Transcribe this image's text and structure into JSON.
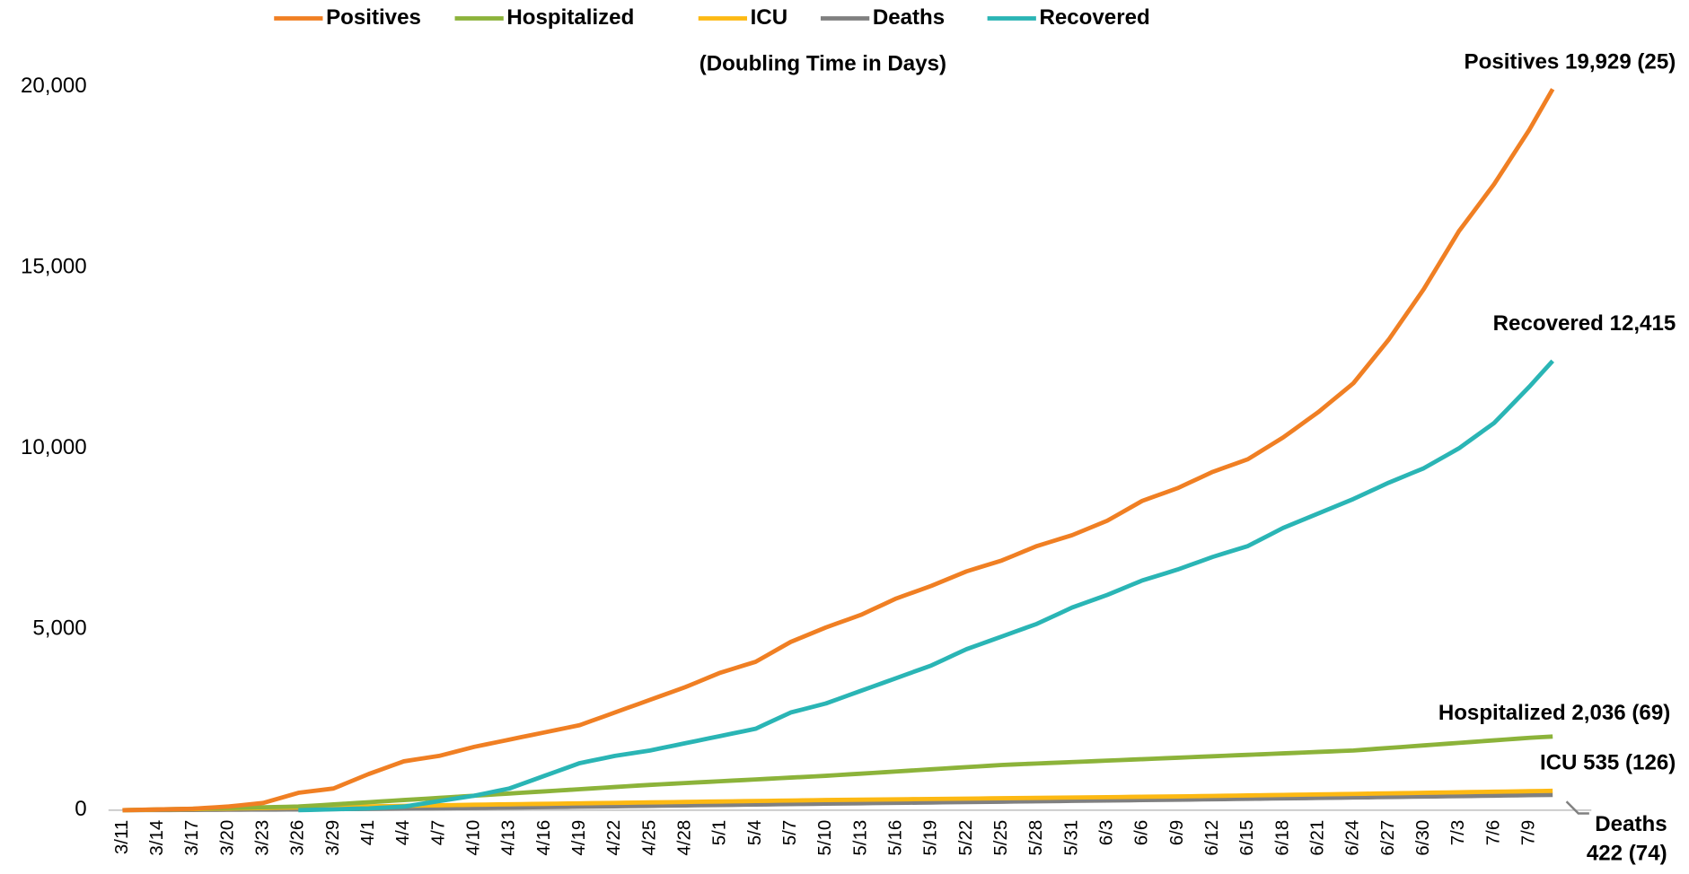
{
  "chart_data": {
    "type": "line",
    "subtitle": "(Doubling Time in Days)",
    "categories": [
      "3/11",
      null,
      null,
      "3/14",
      null,
      null,
      "3/17",
      null,
      null,
      "3/20",
      null,
      null,
      "3/23",
      null,
      null,
      "3/26",
      null,
      null,
      "3/29",
      null,
      null,
      "4/1",
      null,
      null,
      "4/4",
      null,
      null,
      "4/7",
      null,
      null,
      "4/10",
      null,
      null,
      "4/13",
      null,
      null,
      "4/16",
      null,
      null,
      "4/19",
      null,
      null,
      "4/22",
      null,
      null,
      "4/25",
      null,
      null,
      "4/28",
      null,
      null,
      "5/1",
      null,
      null,
      "5/4",
      null,
      null,
      "5/7",
      null,
      null,
      "5/10",
      null,
      null,
      "5/13",
      null,
      null,
      "5/16",
      null,
      null,
      "5/19",
      null,
      null,
      "5/22",
      null,
      null,
      "5/25",
      null,
      null,
      "5/28",
      null,
      null,
      "5/31",
      null,
      null,
      "6/3",
      null,
      null,
      "6/6",
      null,
      null,
      "6/9",
      null,
      null,
      "6/12",
      null,
      null,
      "6/15",
      null,
      null,
      "6/18",
      null,
      null,
      "6/21",
      null,
      null,
      "6/24",
      null,
      null,
      "6/27",
      null,
      null,
      "6/30",
      null,
      null,
      "7/3",
      null,
      null,
      "7/6",
      null,
      null,
      "7/9",
      null,
      null
    ],
    "series": [
      {
        "name": "Positives",
        "color": "#f07f23",
        "values": [
          0,
          7,
          14,
          20,
          27,
          33,
          40,
          60,
          80,
          100,
          133,
          167,
          200,
          293,
          387,
          480,
          520,
          560,
          600,
          733,
          867,
          1000,
          1117,
          1233,
          1350,
          1400,
          1450,
          1500,
          1583,
          1667,
          1750,
          1817,
          1883,
          1950,
          2017,
          2083,
          2150,
          2217,
          2283,
          2350,
          2467,
          2583,
          2700,
          2817,
          2933,
          3050,
          3167,
          3283,
          3400,
          3533,
          3667,
          3800,
          3900,
          4000,
          4100,
          4283,
          4467,
          4650,
          4783,
          4917,
          5050,
          5167,
          5283,
          5400,
          5550,
          5700,
          5850,
          5967,
          6083,
          6200,
          6333,
          6467,
          6600,
          6700,
          6800,
          6900,
          7033,
          7167,
          7300,
          7400,
          7500,
          7600,
          7733,
          7867,
          8000,
          8183,
          8367,
          8550,
          8667,
          8783,
          8900,
          9050,
          9200,
          9350,
          9467,
          9583,
          9700,
          9900,
          10100,
          10300,
          10533,
          10767,
          11000,
          11267,
          11533,
          11800,
          12200,
          12600,
          13000,
          13467,
          13933,
          14400,
          14933,
          15467,
          16000,
          16433,
          16867,
          17300,
          17800,
          18300,
          18800,
          19365,
          19929
        ]
      },
      {
        "name": "Hospitalized",
        "color": "#8cb33a",
        "values": [
          0,
          7,
          13,
          20,
          27,
          33,
          40,
          47,
          53,
          60,
          67,
          73,
          80,
          87,
          93,
          100,
          120,
          140,
          160,
          180,
          200,
          220,
          240,
          260,
          280,
          300,
          320,
          340,
          360,
          380,
          400,
          420,
          440,
          460,
          480,
          500,
          520,
          540,
          560,
          580,
          600,
          620,
          640,
          660,
          680,
          700,
          717,
          733,
          750,
          767,
          783,
          800,
          817,
          833,
          850,
          867,
          883,
          900,
          917,
          933,
          950,
          970,
          990,
          1010,
          1030,
          1050,
          1070,
          1090,
          1110,
          1130,
          1150,
          1170,
          1190,
          1210,
          1230,
          1250,
          1263,
          1277,
          1290,
          1303,
          1317,
          1330,
          1343,
          1357,
          1370,
          1383,
          1397,
          1410,
          1423,
          1437,
          1450,
          1463,
          1477,
          1490,
          1503,
          1517,
          1530,
          1543,
          1557,
          1570,
          1583,
          1597,
          1610,
          1623,
          1637,
          1650,
          1673,
          1697,
          1720,
          1743,
          1767,
          1790,
          1813,
          1837,
          1860,
          1883,
          1907,
          1930,
          1953,
          1977,
          2000,
          2018,
          2036
        ]
      },
      {
        "name": "ICU",
        "color": "#fdb913",
        "values": [
          0,
          5,
          10,
          15,
          20,
          25,
          30,
          35,
          40,
          45,
          50,
          55,
          60,
          65,
          70,
          75,
          80,
          85,
          90,
          95,
          100,
          105,
          110,
          115,
          120,
          125,
          130,
          135,
          140,
          145,
          150,
          154,
          159,
          163,
          167,
          172,
          176,
          180,
          185,
          189,
          193,
          198,
          202,
          206,
          211,
          215,
          219,
          224,
          228,
          232,
          237,
          241,
          245,
          250,
          254,
          258,
          263,
          267,
          271,
          276,
          280,
          283,
          287,
          290,
          293,
          297,
          300,
          303,
          307,
          310,
          313,
          317,
          320,
          323,
          327,
          330,
          333,
          337,
          340,
          343,
          347,
          350,
          353,
          357,
          360,
          363,
          367,
          370,
          373,
          377,
          380,
          385,
          389,
          394,
          399,
          403,
          408,
          413,
          417,
          422,
          427,
          431,
          436,
          441,
          445,
          450,
          455,
          460,
          465,
          470,
          475,
          480,
          485,
          490,
          495,
          500,
          505,
          510,
          515,
          520,
          525,
          530,
          535
        ]
      },
      {
        "name": "Deaths",
        "color": "#808080",
        "values": [
          0,
          1,
          3,
          4,
          5,
          7,
          8,
          9,
          11,
          12,
          13,
          15,
          16,
          17,
          19,
          20,
          23,
          25,
          28,
          31,
          33,
          36,
          39,
          41,
          44,
          47,
          49,
          52,
          55,
          57,
          60,
          64,
          68,
          72,
          76,
          80,
          84,
          88,
          92,
          96,
          100,
          104,
          108,
          112,
          116,
          120,
          124,
          128,
          132,
          136,
          140,
          144,
          148,
          152,
          156,
          160,
          164,
          168,
          172,
          176,
          180,
          184,
          187,
          191,
          195,
          198,
          202,
          206,
          209,
          213,
          217,
          220,
          224,
          228,
          231,
          235,
          239,
          242,
          246,
          250,
          253,
          257,
          261,
          264,
          268,
          272,
          275,
          279,
          283,
          286,
          290,
          294,
          298,
          302,
          306,
          310,
          314,
          318,
          322,
          326,
          330,
          334,
          338,
          342,
          346,
          350,
          354,
          359,
          363,
          367,
          372,
          376,
          380,
          385,
          389,
          393,
          398,
          402,
          406,
          411,
          415,
          418,
          422
        ]
      },
      {
        "name": "Recovered",
        "color": "#2ab5b5",
        "values": [
          null,
          null,
          null,
          null,
          null,
          null,
          null,
          null,
          null,
          null,
          null,
          null,
          null,
          null,
          null,
          0,
          8,
          17,
          25,
          33,
          42,
          50,
          67,
          83,
          100,
          150,
          200,
          250,
          300,
          350,
          400,
          467,
          533,
          600,
          717,
          833,
          950,
          1067,
          1183,
          1300,
          1367,
          1433,
          1500,
          1550,
          1600,
          1650,
          1717,
          1783,
          1850,
          1917,
          1983,
          2050,
          2117,
          2183,
          2250,
          2400,
          2550,
          2700,
          2783,
          2867,
          2950,
          3067,
          3183,
          3300,
          3417,
          3533,
          3650,
          3767,
          3883,
          4000,
          4150,
          4300,
          4450,
          4567,
          4683,
          4800,
          4917,
          5033,
          5150,
          5300,
          5450,
          5600,
          5717,
          5833,
          5950,
          6083,
          6217,
          6350,
          6450,
          6550,
          6650,
          6767,
          6883,
          7000,
          7100,
          7200,
          7300,
          7467,
          7633,
          7800,
          7933,
          8067,
          8200,
          8333,
          8467,
          8600,
          8750,
          8900,
          9050,
          9183,
          9317,
          9450,
          9633,
          9817,
          10000,
          10233,
          10467,
          10700,
          11033,
          11367,
          11700,
          12058,
          12415
        ]
      }
    ],
    "ylim": [
      0,
      20000
    ],
    "yticks": [
      0,
      {
        "value": 5000,
        "label": "5,000"
      },
      {
        "value": 10000,
        "label": "10,000"
      },
      {
        "value": 15000,
        "label": "15,000"
      },
      {
        "value": 20000,
        "label": "20,000"
      }
    ],
    "legend": "top",
    "annotations": [
      "Positives 19,929 (25)",
      "Recovered 12,415",
      "Hospitalized 2,036 (69)",
      "ICU 535 (126)",
      "Deaths",
      "422 (74)"
    ]
  }
}
